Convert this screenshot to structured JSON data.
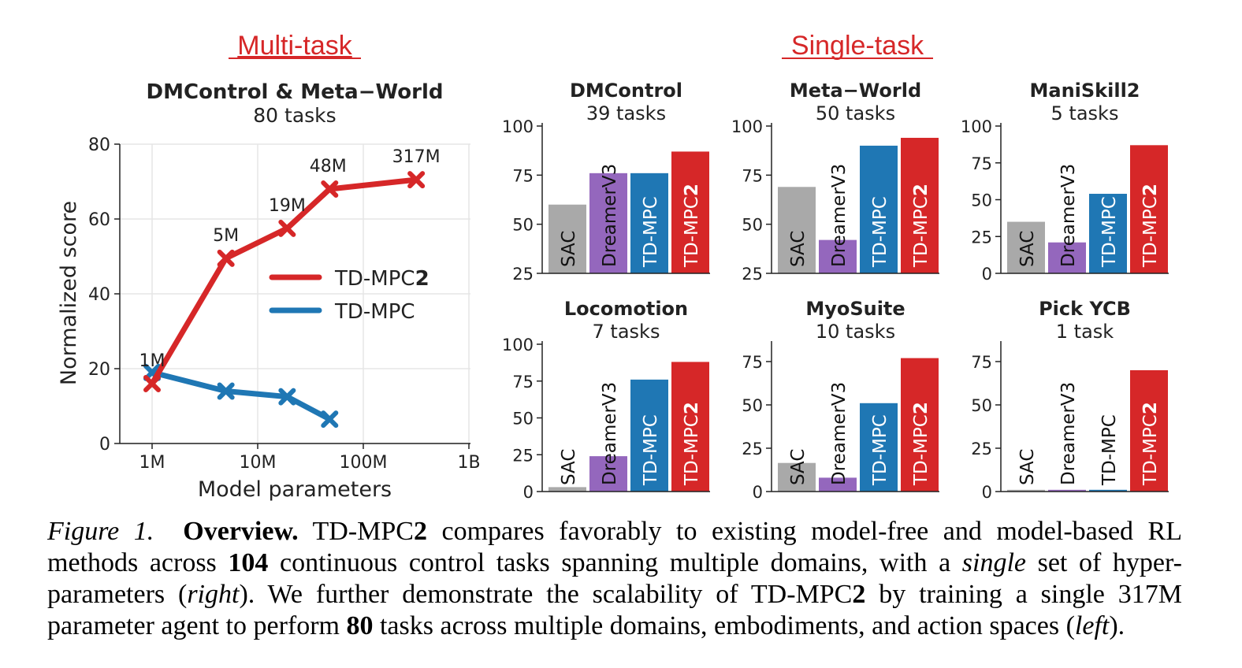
{
  "headings": {
    "multi": "Multi-task",
    "single": "Single-task"
  },
  "colors": {
    "heading_red": "#d62728",
    "tdmpc2": "#d62728",
    "tdmpc": "#1f77b4",
    "sac": "#a9a9a9",
    "dreamer": "#9467bd"
  },
  "chart_data": [
    {
      "type": "line",
      "title": "DMControl & Meta−World",
      "subtitle": "80 tasks",
      "xlabel": "Model parameters",
      "ylabel": "Normalized score",
      "xscale": "log",
      "xticks": [
        "1M",
        "10M",
        "100M",
        "1B"
      ],
      "yticks": [
        0,
        20,
        40,
        60,
        80
      ],
      "ylim": [
        0,
        80
      ],
      "grid": true,
      "legend": "center-right",
      "series": [
        {
          "name": "TD-MPC2",
          "color": "#d62728",
          "x": [
            1000000,
            5000000,
            19000000,
            48000000,
            317000000
          ],
          "y": [
            16,
            49.5,
            57.5,
            68,
            70.5
          ],
          "labels": [
            "1M",
            "5M",
            "19M",
            "48M",
            "317M"
          ]
        },
        {
          "name": "TD-MPC",
          "color": "#1f77b4",
          "x": [
            1000000,
            5000000,
            19000000,
            48000000
          ],
          "y": [
            19,
            14,
            12.5,
            6.5
          ]
        }
      ]
    },
    {
      "type": "bar",
      "title": "DMControl",
      "subtitle": "39 tasks",
      "ylim": [
        25,
        100
      ],
      "yticks": [
        25,
        50,
        75,
        100
      ],
      "categories": [
        "SAC",
        "DreamerV3",
        "TD-MPC",
        "TD-MPC2"
      ],
      "values": [
        60,
        76,
        76,
        87
      ]
    },
    {
      "type": "bar",
      "title": "Meta−World",
      "subtitle": "50 tasks",
      "ylim": [
        25,
        100
      ],
      "yticks": [
        25,
        50,
        75,
        100
      ],
      "categories": [
        "SAC",
        "DreamerV3",
        "TD-MPC",
        "TD-MPC2"
      ],
      "values": [
        69,
        42,
        90,
        94
      ]
    },
    {
      "type": "bar",
      "title": "ManiSkill2",
      "subtitle": "5 tasks",
      "ylim": [
        0,
        100
      ],
      "yticks": [
        0,
        25,
        50,
        75,
        100
      ],
      "categories": [
        "SAC",
        "DreamerV3",
        "TD-MPC",
        "TD-MPC2"
      ],
      "values": [
        35,
        21,
        54,
        87
      ]
    },
    {
      "type": "bar",
      "title": "Locomotion",
      "subtitle": "7 tasks",
      "ylim": [
        0,
        100
      ],
      "yticks": [
        0,
        25,
        50,
        75,
        100
      ],
      "categories": [
        "SAC",
        "DreamerV3",
        "TD-MPC",
        "TD-MPC2"
      ],
      "values": [
        3,
        24,
        76,
        88
      ]
    },
    {
      "type": "bar",
      "title": "MyoSuite",
      "subtitle": "10 tasks",
      "ylim": [
        0,
        85
      ],
      "yticks": [
        0,
        25,
        50,
        75
      ],
      "categories": [
        "SAC",
        "DreamerV3",
        "TD-MPC",
        "TD-MPC2"
      ],
      "values": [
        16.5,
        8,
        51,
        77
      ]
    },
    {
      "type": "bar",
      "title": "Pick YCB",
      "subtitle": "1 task",
      "ylim": [
        0,
        85
      ],
      "yticks": [
        0,
        25,
        50,
        75
      ],
      "categories": [
        "SAC",
        "DreamerV3",
        "TD-MPC",
        "TD-MPC2"
      ],
      "values": [
        1,
        1,
        1,
        70
      ]
    }
  ],
  "caption": {
    "label": "Figure 1.",
    "bold_title": "Overview.",
    "t1": " TD-MPC",
    "b2a": "2",
    "t2": " compares favorably to existing model-free and model-based RL methods across ",
    "b104": "104",
    "t3": " continuous control tasks spanning multiple domains, with a ",
    "i_single": "single",
    "t4": " set of hyper-parameters (",
    "i_right": "right",
    "t5": "). We further demonstrate the scalability of TD-MPC",
    "b2b": "2",
    "t6": " by training a single 317M parameter agent to perform ",
    "b80": "80",
    "t7": " tasks across multiple domains, embodiments, and action spaces (",
    "i_left": "left",
    "t8": ")."
  }
}
